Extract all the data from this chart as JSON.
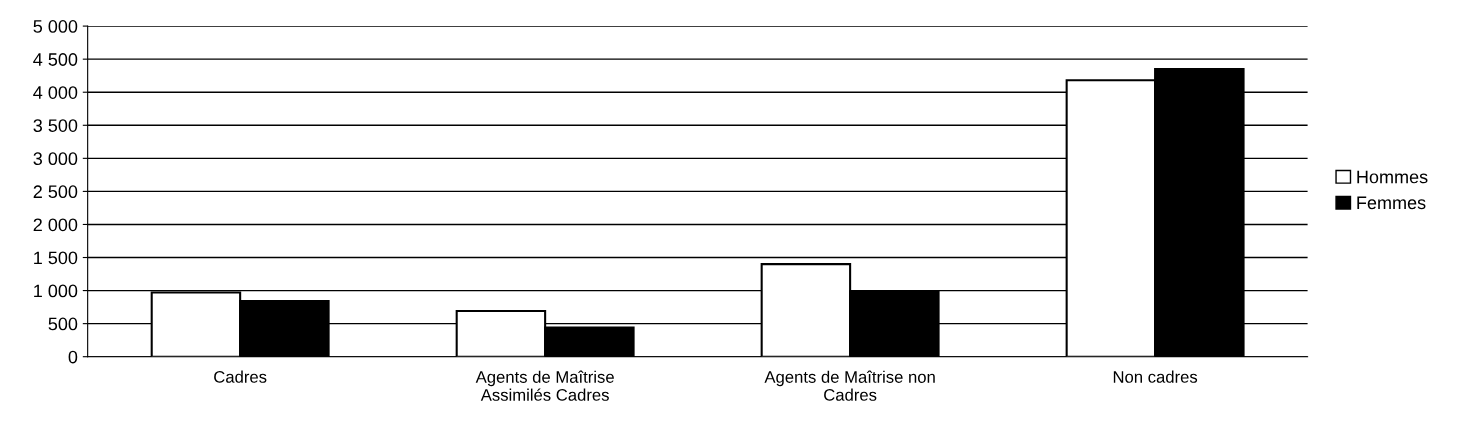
{
  "chart_data": {
    "type": "bar",
    "categories": [
      "Cadres",
      "Agents de Maîtrise\nAssimilés Cadres",
      "Agents de Maîtrise non\nCadres",
      "Non cadres"
    ],
    "series": [
      {
        "name": "Hommes",
        "color": "#ffffff",
        "values": [
          970,
          690,
          1400,
          4180
        ]
      },
      {
        "name": "Femmes",
        "color": "#000000",
        "values": [
          840,
          440,
          990,
          4350
        ]
      }
    ],
    "ylim": [
      0,
      5000
    ],
    "yticks": [
      0,
      500,
      {
        "value": 1000,
        "label": "1 000"
      },
      {
        "value": 1500,
        "label": "1 500"
      },
      {
        "value": 2000,
        "label": "2 000"
      },
      {
        "value": 2500,
        "label": "2 500"
      },
      {
        "value": 3000,
        "label": "3 000"
      },
      {
        "value": 3500,
        "label": "3 500"
      },
      {
        "value": 4000,
        "label": "4 000"
      },
      {
        "value": 4500,
        "label": "4 500"
      },
      {
        "value": 5000,
        "label": "5 000"
      }
    ],
    "grid": "y",
    "legend": "right"
  }
}
